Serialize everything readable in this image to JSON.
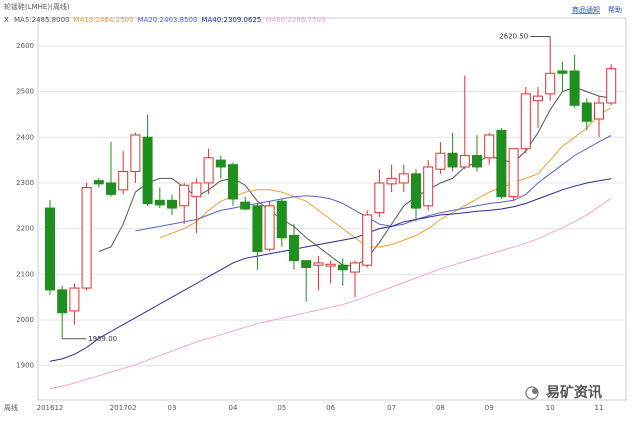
{
  "chart_data": {
    "type": "candlestick",
    "title": "轮锰硅(LMHE)(周线)",
    "links": [
      "商品通知",
      "帮助"
    ],
    "period_label": "周线",
    "watermark": "易矿资讯",
    "categories": [
      "201612",
      null,
      null,
      null,
      null,
      null,
      "201702",
      null,
      null,
      null,
      "03",
      null,
      null,
      null,
      null,
      "04",
      null,
      null,
      null,
      "05",
      null,
      null,
      null,
      "06",
      null,
      null,
      null,
      null,
      "07",
      null,
      null,
      null,
      "08",
      null,
      null,
      null,
      "09",
      null,
      null,
      null,
      null,
      "10",
      null,
      null,
      null,
      "11",
      null
    ],
    "open": [
      2245,
      2066,
      2020,
      2070,
      2305,
      2300,
      2285,
      2325,
      2400,
      2262,
      2262,
      2250,
      2270,
      2300,
      2350,
      2340,
      2258,
      2250,
      2155,
      2260,
      2185,
      2130,
      2120,
      2118,
      2120,
      2105,
      2120,
      2235,
      2298,
      2300,
      2320,
      2250,
      2330,
      2365,
      2335,
      2360,
      2355,
      2415,
      2270,
      2375,
      2480,
      2495,
      2545,
      2545,
      2475,
      2440,
      2475
    ],
    "high": [
      2263,
      2075,
      2080,
      2300,
      2310,
      2390,
      2370,
      2410,
      2450,
      2290,
      2275,
      2300,
      2310,
      2375,
      2360,
      2345,
      2270,
      2255,
      2260,
      2265,
      2210,
      2130,
      2140,
      2130,
      2135,
      2130,
      2240,
      2330,
      2340,
      2340,
      2330,
      2350,
      2390,
      2410,
      2535,
      2405,
      2410,
      2420,
      2375,
      2510,
      2510,
      2620.5,
      2565,
      2580,
      2485,
      2490,
      2560
    ],
    "low": [
      2055,
      1959,
      1990,
      2065,
      2290,
      2270,
      2275,
      2300,
      2250,
      2245,
      2230,
      2210,
      2190,
      2275,
      2310,
      2250,
      2240,
      2110,
      2150,
      2160,
      2110,
      2040,
      2065,
      2080,
      2075,
      2050,
      2115,
      2225,
      2280,
      2280,
      2215,
      2240,
      2320,
      2325,
      2330,
      2325,
      2340,
      2265,
      2260,
      2365,
      2420,
      2480,
      2500,
      2465,
      2415,
      2400,
      2470
    ],
    "close": [
      2066,
      2016,
      2070,
      2290,
      2298,
      2275,
      2325,
      2405,
      2255,
      2252,
      2245,
      2295,
      2300,
      2355,
      2335,
      2265,
      2243,
      2150,
      2250,
      2180,
      2130,
      2115,
      2125,
      2122,
      2110,
      2125,
      2230,
      2300,
      2310,
      2320,
      2245,
      2335,
      2365,
      2335,
      2360,
      2335,
      2405,
      2270,
      2375,
      2495,
      2490,
      2540,
      2540,
      2470,
      2435,
      2475,
      2550
    ],
    "up_color": "#e03030",
    "down_color": "#1f8f1f",
    "series": [
      {
        "name": "MA5:2485.8000",
        "color": "#555555",
        "values": [
          null,
          null,
          null,
          null,
          2150,
          2160,
          2210,
          2280,
          2300,
          2310,
          2310,
          2290,
          2270,
          2285,
          2305,
          2310,
          2295,
          2260,
          2240,
          2220,
          2205,
          2180,
          2160,
          2140,
          2120,
          2118,
          2135,
          2170,
          2210,
          2250,
          2270,
          2285,
          2300,
          2310,
          2335,
          2345,
          2360,
          2350,
          2345,
          2370,
          2410,
          2460,
          2500,
          2510,
          2500,
          2490,
          2485.8
        ]
      },
      {
        "name": "MA10:2464.2500",
        "color": "#f0a030",
        "values": [
          null,
          null,
          null,
          null,
          null,
          null,
          null,
          null,
          null,
          2180,
          2190,
          2200,
          2215,
          2240,
          2260,
          2270,
          2280,
          2285,
          2285,
          2280,
          2270,
          2260,
          2240,
          2220,
          2200,
          2180,
          2160,
          2160,
          2165,
          2175,
          2185,
          2200,
          2220,
          2235,
          2250,
          2265,
          2280,
          2290,
          2300,
          2310,
          2320,
          2350,
          2380,
          2400,
          2420,
          2450,
          2464.25
        ]
      },
      {
        "name": "MA20:2403.8500",
        "color": "#5a64c8",
        "values": [
          null,
          null,
          null,
          null,
          null,
          null,
          null,
          2195,
          2200,
          2205,
          2210,
          2215,
          2220,
          2230,
          2240,
          2245,
          2250,
          2255,
          2260,
          2265,
          2270,
          2272,
          2270,
          2265,
          2255,
          2240,
          2225,
          2210,
          2205,
          2210,
          2220,
          2228,
          2235,
          2240,
          2245,
          2250,
          2255,
          2258,
          2262,
          2275,
          2300,
          2320,
          2340,
          2360,
          2375,
          2390,
          2403.85
        ]
      },
      {
        "name": "MA40:2309.0625",
        "color": "#2a2a9a",
        "values": [
          1910,
          1915,
          1925,
          1940,
          1960,
          1975,
          1990,
          2005,
          2020,
          2035,
          2050,
          2065,
          2080,
          2095,
          2110,
          2125,
          2135,
          2140,
          2145,
          2150,
          2155,
          2160,
          2165,
          2170,
          2175,
          2180,
          2190,
          2200,
          2205,
          2215,
          2220,
          2225,
          2230,
          2232,
          2235,
          2238,
          2240,
          2243,
          2248,
          2255,
          2265,
          2275,
          2285,
          2293,
          2300,
          2305,
          2309.0625
        ]
      },
      {
        "name": "MA60:2266.7500",
        "color": "#f0a8d8",
        "values": [
          1850,
          1855,
          1862,
          1870,
          1878,
          1886,
          1894,
          1902,
          1912,
          1922,
          1932,
          1942,
          1952,
          1960,
          1968,
          1976,
          1984,
          1992,
          1998,
          2004,
          2010,
          2016,
          2022,
          2028,
          2034,
          2042,
          2052,
          2062,
          2072,
          2082,
          2092,
          2102,
          2112,
          2120,
          2128,
          2136,
          2144,
          2152,
          2160,
          2168,
          2178,
          2190,
          2202,
          2215,
          2230,
          2248,
          2266.75
        ]
      }
    ],
    "annotations": [
      {
        "value": 2620.5,
        "label": "2620.50"
      },
      {
        "value": 1959,
        "label": "1959.00"
      }
    ],
    "ylim": [
      1825,
      2661
    ],
    "yticks": [
      1900,
      2000,
      2100,
      2200,
      2300,
      2400,
      2500,
      2600
    ],
    "grid": true
  }
}
